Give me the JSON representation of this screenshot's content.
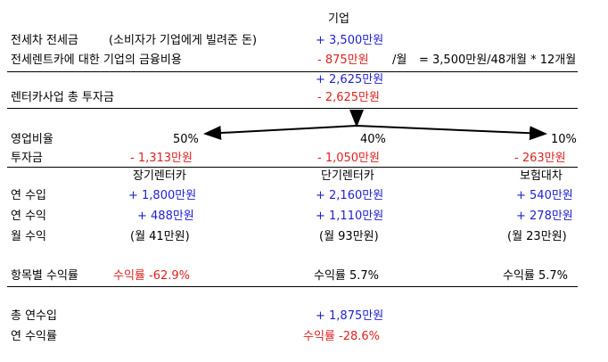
{
  "header": {
    "company": "기업"
  },
  "rows": {
    "lease_deposit": {
      "label": "전세차 전세금",
      "note": "(소비자가 기업에게 빌려준 돈)",
      "value": "+ 3,500만원"
    },
    "finance_cost": {
      "label": "전세렌트카에 대한 기업의 금융비용",
      "value": "- 875만원",
      "unit": "/월",
      "formula": "=   3,500만원/48개월 * 12개월"
    },
    "net_amount": {
      "value": "+ 2,625만원"
    },
    "total_invest": {
      "label": "렌터카사업 총 투자금",
      "value": "- 2,625만원"
    }
  },
  "split": {
    "ratio_label": "영업비율",
    "invest_label": "투자금",
    "ratios": [
      "50%",
      "40%",
      "10%"
    ],
    "investments": [
      "- 1,313만원",
      "- 1,050만원",
      "- 263만원"
    ]
  },
  "businesses": {
    "names": [
      "장기렌터카",
      "단기렌터카",
      "보험대차"
    ],
    "annual_income_label": "연 수입",
    "annual_profit_label": "연 수익",
    "monthly_profit_label": "월 수익",
    "annual_income": [
      "+ 1,800만원",
      "+ 2,160만원",
      "+ 540만원"
    ],
    "annual_profit": [
      "+ 488만원",
      "+ 1,110만원",
      "+ 278만원"
    ],
    "monthly_profit": [
      "(월 41만원)",
      "(월 93만원)",
      "(월 23만원)"
    ]
  },
  "returns": {
    "label": "항목별 수익률",
    "values": [
      "수익률 -62.9%",
      "수익률 5.7%",
      "수익률 5.7%"
    ]
  },
  "totals": {
    "income_label": "총 연수입",
    "income_value": "+ 1,875만원",
    "return_label": "연 수익률",
    "return_value": "수익률 -28.6%"
  },
  "colors": {
    "positive": "#1f1fd0",
    "negative": "#e02020"
  }
}
